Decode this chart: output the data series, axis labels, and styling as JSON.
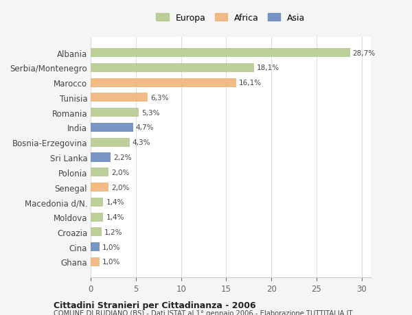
{
  "countries": [
    "Albania",
    "Serbia/Montenegro",
    "Marocco",
    "Tunisia",
    "Romania",
    "India",
    "Bosnia-Erzegovina",
    "Sri Lanka",
    "Polonia",
    "Senegal",
    "Macedonia d/N.",
    "Moldova",
    "Croazia",
    "Cina",
    "Ghana"
  ],
  "values": [
    28.7,
    18.1,
    16.1,
    6.3,
    5.3,
    4.7,
    4.3,
    2.2,
    2.0,
    2.0,
    1.4,
    1.4,
    1.2,
    1.0,
    1.0
  ],
  "labels": [
    "28,7%",
    "18,1%",
    "16,1%",
    "6,3%",
    "5,3%",
    "4,7%",
    "4,3%",
    "2,2%",
    "2,0%",
    "2,0%",
    "1,4%",
    "1,4%",
    "1,2%",
    "1,0%",
    "1,0%"
  ],
  "continents": [
    "Europa",
    "Europa",
    "Africa",
    "Africa",
    "Europa",
    "Asia",
    "Europa",
    "Asia",
    "Europa",
    "Africa",
    "Europa",
    "Europa",
    "Europa",
    "Asia",
    "Africa"
  ],
  "colors": {
    "Europa": "#b5c98e",
    "Africa": "#f0b47a",
    "Asia": "#6b8abf"
  },
  "legend_colors": {
    "Europa": "#b5c98e",
    "Africa": "#f0b47a",
    "Asia": "#6b8abf"
  },
  "xlim": [
    0,
    31
  ],
  "xticks": [
    0,
    5,
    10,
    15,
    20,
    25,
    30
  ],
  "title": "Cittadini Stranieri per Cittadinanza - 2006",
  "subtitle": "COMUNE DI RUDIANO (BS) - Dati ISTAT al 1° gennaio 2006 - Elaborazione TUTTITALIA.IT",
  "bg_color": "#f5f5f5",
  "bar_bg_color": "#ffffff"
}
